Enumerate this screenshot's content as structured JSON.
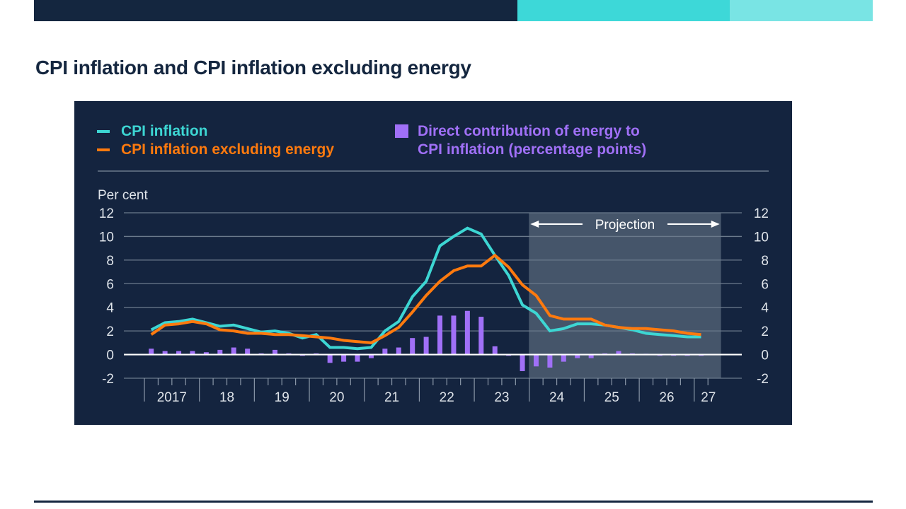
{
  "header": {
    "accent_colors": [
      "#14263f",
      "#3dd8d8",
      "#79e4e4"
    ],
    "title": "CPI inflation and CPI inflation excluding energy"
  },
  "chart_data": {
    "type": "line",
    "title": "CPI inflation and CPI inflation excluding energy",
    "ylabel": "Per cent",
    "xlabel": "",
    "ylim": [
      -2,
      12
    ],
    "yticks": [
      12,
      10,
      8,
      6,
      4,
      2,
      0,
      -2
    ],
    "ytick_labels": [
      "12",
      "10",
      "8",
      "6",
      "4",
      "2",
      "0",
      "-2"
    ],
    "grid": true,
    "legend_placement": "top",
    "x_tick_labels": [
      "2017",
      "18",
      "19",
      "20",
      "21",
      "22",
      "23",
      "24",
      "25",
      "26",
      "27"
    ],
    "x_start": "2017 Q1",
    "frequency": "quarterly",
    "projection": {
      "label": "Projection",
      "start": "2024 Q1",
      "end": "2027 Q1"
    },
    "quarters": [
      "2017Q1",
      "2017Q2",
      "2017Q3",
      "2017Q4",
      "2018Q1",
      "2018Q2",
      "2018Q3",
      "2018Q4",
      "2019Q1",
      "2019Q2",
      "2019Q3",
      "2019Q4",
      "2020Q1",
      "2020Q2",
      "2020Q3",
      "2020Q4",
      "2021Q1",
      "2021Q2",
      "2021Q3",
      "2021Q4",
      "2022Q1",
      "2022Q2",
      "2022Q3",
      "2022Q4",
      "2023Q1",
      "2023Q2",
      "2023Q3",
      "2023Q4",
      "2024Q1",
      "2024Q2",
      "2024Q3",
      "2024Q4",
      "2025Q1",
      "2025Q2",
      "2025Q3",
      "2025Q4",
      "2026Q1",
      "2026Q2",
      "2026Q3",
      "2026Q4",
      "2027Q1"
    ],
    "series": [
      {
        "name": "CPI inflation",
        "type": "line",
        "color": "#3dd6d3",
        "values": [
          2.1,
          2.7,
          2.8,
          3.0,
          2.7,
          2.4,
          2.5,
          2.2,
          1.9,
          2.0,
          1.8,
          1.4,
          1.7,
          0.6,
          0.6,
          0.5,
          0.6,
          2.0,
          2.8,
          4.9,
          6.2,
          9.2,
          10.0,
          10.7,
          10.2,
          8.4,
          6.7,
          4.2,
          3.5,
          2.0,
          2.2,
          2.6,
          2.6,
          2.5,
          2.3,
          2.1,
          1.8,
          1.7,
          1.6,
          1.5,
          1.5
        ]
      },
      {
        "name": "CPI inflation excluding energy",
        "type": "line",
        "color": "#ff7a0e",
        "values": [
          1.7,
          2.5,
          2.6,
          2.8,
          2.6,
          2.1,
          2.0,
          1.8,
          1.8,
          1.7,
          1.7,
          1.6,
          1.5,
          1.4,
          1.2,
          1.1,
          1.0,
          1.6,
          2.3,
          3.6,
          5.0,
          6.2,
          7.1,
          7.5,
          7.5,
          8.4,
          7.4,
          5.9,
          5.0,
          3.3,
          3.0,
          3.0,
          3.0,
          2.5,
          2.3,
          2.2,
          2.2,
          2.1,
          2.0,
          1.8,
          1.7
        ]
      },
      {
        "name": "Direct contribution of energy to CPI inflation (percentage points)",
        "type": "bar",
        "color": "#a070f7",
        "values": [
          0.5,
          0.3,
          0.3,
          0.3,
          0.2,
          0.4,
          0.6,
          0.5,
          0.1,
          0.4,
          0.1,
          -0.1,
          0.1,
          -0.7,
          -0.6,
          -0.6,
          -0.3,
          0.5,
          0.6,
          1.4,
          1.5,
          3.3,
          3.3,
          3.7,
          3.2,
          0.7,
          -0.1,
          -1.4,
          -1.0,
          -1.1,
          -0.6,
          -0.3,
          -0.3,
          0.1,
          0.3,
          0.1,
          0.0,
          -0.1,
          -0.1,
          -0.1,
          -0.1
        ]
      }
    ]
  },
  "legend": {
    "cpi_label": "CPI inflation",
    "core_label": "CPI inflation excluding energy",
    "energy_label_line1": "Direct contribution of energy to",
    "energy_label_line2": "CPI inflation (percentage points)"
  },
  "panel": {
    "background": "#14243f",
    "projection_shade": "#45556a"
  }
}
